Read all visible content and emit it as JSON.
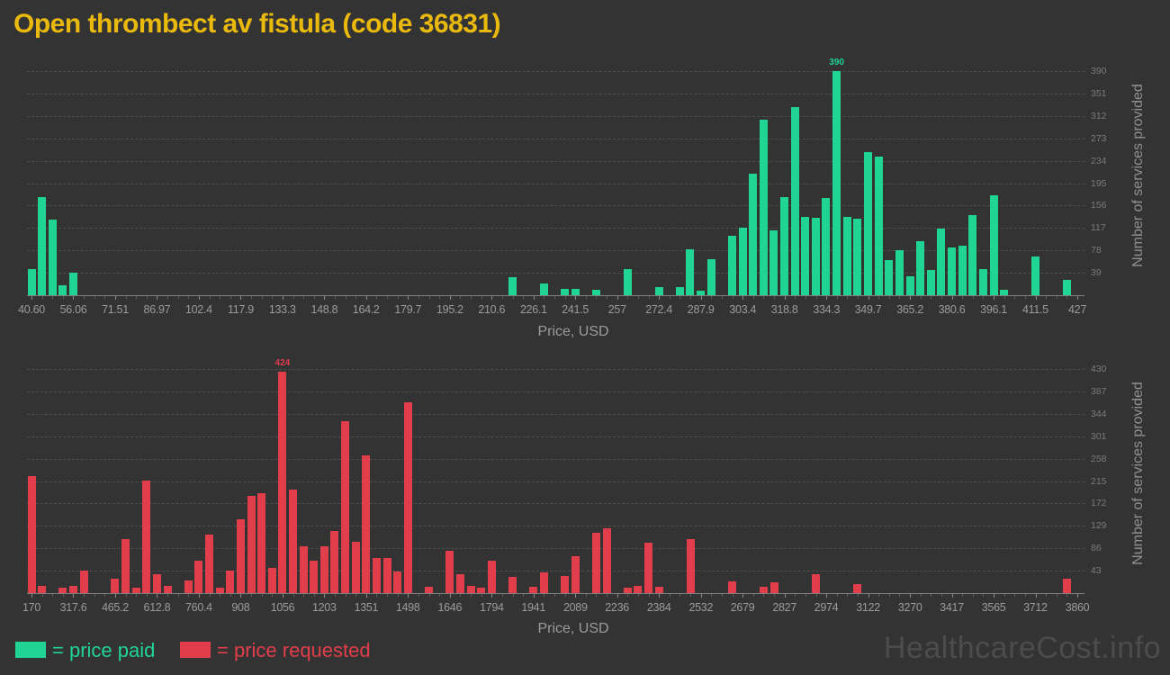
{
  "title": "Open thrombect av fistula (code 36831)",
  "watermark": "HealthcareCost.info",
  "legend": {
    "paid_label": "= price paid",
    "requested_label": "= price requested"
  },
  "colors": {
    "background": "#333333",
    "title": "#e9b90e",
    "paid": "#20d494",
    "requested": "#e13d4b",
    "axis_text": "#9b9b9b",
    "y_tick_text": "#7b7b7b",
    "grid": "#4e4e4e",
    "watermark": "#4c4c4c"
  },
  "chart_data": [
    {
      "type": "bar",
      "name": "price paid",
      "color": "#20d494",
      "xlabel": "Price, USD",
      "ylabel": "Number of services provided",
      "grid": "horizontal-dashed",
      "legend_position": "bottom",
      "x_range": [
        40.6,
        427
      ],
      "x_tick_labels": [
        "40.60",
        "56.06",
        "71.51",
        "86.97",
        "102.4",
        "117.9",
        "133.3",
        "148.8",
        "164.2",
        "179.7",
        "195.2",
        "210.6",
        "226.1",
        "241.5",
        "257",
        "272.4",
        "287.9",
        "303.4",
        "318.8",
        "334.3",
        "349.7",
        "365.2",
        "380.6",
        "396.1",
        "411.5",
        "427"
      ],
      "y_ticks": [
        39,
        78,
        117,
        156,
        195,
        234,
        273,
        312,
        351,
        390
      ],
      "ylim": [
        0,
        406
      ],
      "max_annotation": {
        "x": 338.1,
        "label": "390"
      },
      "bars": [
        [
          40.6,
          45
        ],
        [
          44.5,
          171
        ],
        [
          48.3,
          131
        ],
        [
          52.2,
          17
        ],
        [
          56.1,
          39
        ],
        [
          218.3,
          31
        ],
        [
          229.9,
          20
        ],
        [
          237.6,
          11
        ],
        [
          241.5,
          11
        ],
        [
          249.2,
          9
        ],
        [
          260.8,
          45
        ],
        [
          272.4,
          14
        ],
        [
          280.1,
          14
        ],
        [
          284,
          80
        ],
        [
          287.9,
          8
        ],
        [
          291.7,
          63
        ],
        [
          299.4,
          103
        ],
        [
          303.3,
          117
        ],
        [
          307.2,
          212
        ],
        [
          311,
          306
        ],
        [
          314.9,
          112
        ],
        [
          318.8,
          171
        ],
        [
          322.6,
          327
        ],
        [
          326.5,
          137
        ],
        [
          330.3,
          135
        ],
        [
          334.2,
          169
        ],
        [
          338.1,
          390
        ],
        [
          341.9,
          137
        ],
        [
          345.8,
          133
        ],
        [
          349.7,
          249
        ],
        [
          353.6,
          241
        ],
        [
          357.4,
          61
        ],
        [
          361.3,
          79
        ],
        [
          365.2,
          33
        ],
        [
          369,
          94
        ],
        [
          372.9,
          44
        ],
        [
          376.7,
          116
        ],
        [
          380.6,
          83
        ],
        [
          384.5,
          86
        ],
        [
          388.3,
          139
        ],
        [
          392.2,
          45
        ],
        [
          396.1,
          174
        ],
        [
          399.9,
          9
        ],
        [
          411.5,
          68
        ],
        [
          423.1,
          27
        ]
      ]
    },
    {
      "type": "bar",
      "name": "price requested",
      "color": "#e13d4b",
      "xlabel": "Price, USD",
      "ylabel": "Number of services provided",
      "grid": "horizontal-dashed",
      "legend_position": "bottom",
      "x_range": [
        170,
        3860
      ],
      "x_tick_labels": [
        "170",
        "317.6",
        "465.2",
        "612.8",
        "760.4",
        "908",
        "1056",
        "1203",
        "1351",
        "1498",
        "1646",
        "1794",
        "1941",
        "2089",
        "2236",
        "2384",
        "2532",
        "2679",
        "2827",
        "2974",
        "3122",
        "3270",
        "3417",
        "3565",
        "3712",
        "3860"
      ],
      "y_ticks": [
        43,
        86,
        129,
        172,
        215,
        258,
        301,
        344,
        387,
        430
      ],
      "ylim": [
        0,
        446
      ],
      "max_annotation": {
        "x": 1055.6,
        "label": "424"
      },
      "bars": [
        [
          170,
          224
        ],
        [
          206.9,
          14
        ],
        [
          280.7,
          10
        ],
        [
          317.6,
          14
        ],
        [
          354.5,
          44
        ],
        [
          465.2,
          28
        ],
        [
          502.1,
          103
        ],
        [
          539,
          10
        ],
        [
          575.9,
          216
        ],
        [
          612.8,
          36
        ],
        [
          649.7,
          14
        ],
        [
          723.5,
          25
        ],
        [
          760.4,
          62
        ],
        [
          797.3,
          112
        ],
        [
          834.2,
          11
        ],
        [
          871.1,
          43
        ],
        [
          908,
          142
        ],
        [
          944.9,
          187
        ],
        [
          981.8,
          191
        ],
        [
          1018.7,
          48
        ],
        [
          1055.6,
          424
        ],
        [
          1092.5,
          198
        ],
        [
          1129.4,
          90
        ],
        [
          1166.3,
          63
        ],
        [
          1203.2,
          90
        ],
        [
          1240.1,
          119
        ],
        [
          1277,
          329
        ],
        [
          1313.9,
          99
        ],
        [
          1350.8,
          264
        ],
        [
          1387.7,
          67
        ],
        [
          1424.6,
          67
        ],
        [
          1461.5,
          41
        ],
        [
          1498.4,
          366
        ],
        [
          1572.2,
          12
        ],
        [
          1646,
          81
        ],
        [
          1682.9,
          36
        ],
        [
          1719.8,
          14
        ],
        [
          1756.7,
          11
        ],
        [
          1793.6,
          62
        ],
        [
          1867.4,
          31
        ],
        [
          1941.2,
          12
        ],
        [
          1978.1,
          39
        ],
        [
          2051.9,
          33
        ],
        [
          2088.8,
          71
        ],
        [
          2162.6,
          115
        ],
        [
          2199.5,
          124
        ],
        [
          2273.3,
          10
        ],
        [
          2310.2,
          14
        ],
        [
          2347.1,
          96
        ],
        [
          2384,
          12
        ],
        [
          2494.7,
          104
        ],
        [
          2642.3,
          23
        ],
        [
          2753,
          12
        ],
        [
          2789.9,
          20
        ],
        [
          2937.5,
          36
        ],
        [
          3085.1,
          17
        ],
        [
          3823.1,
          27
        ]
      ]
    }
  ]
}
